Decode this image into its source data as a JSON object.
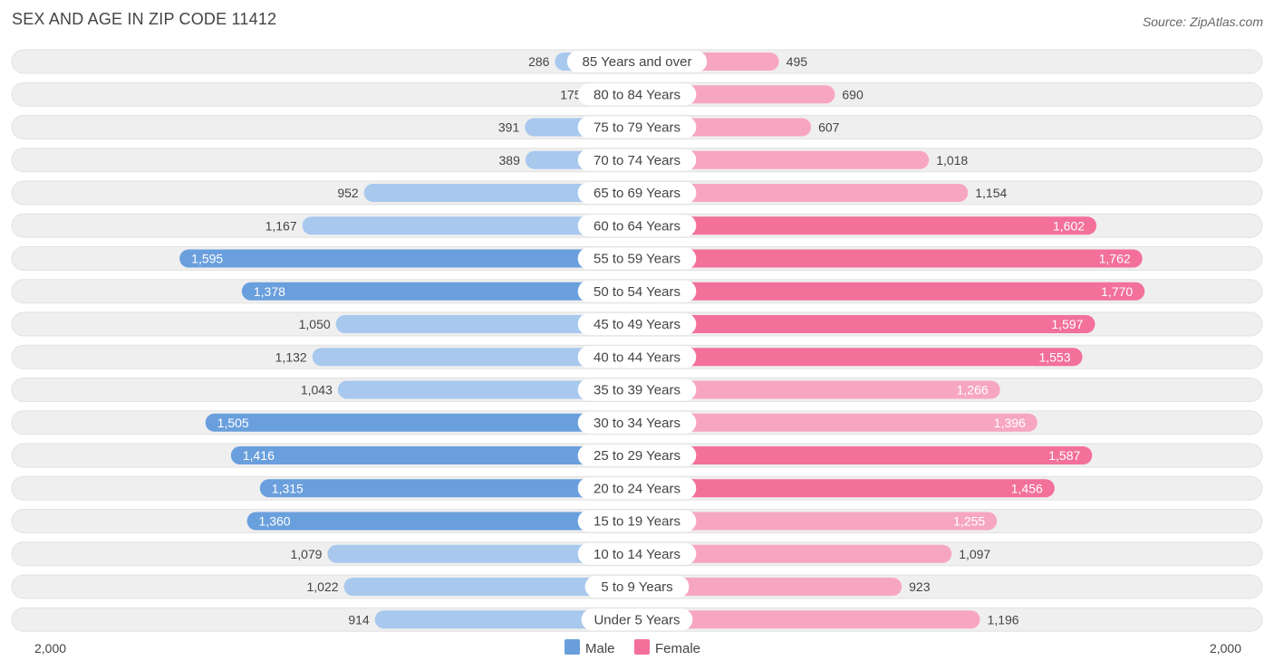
{
  "title": "SEX AND AGE IN ZIP CODE 11412",
  "source": "Source: ZipAtlas.com",
  "colors": {
    "male": "#6a9fdd",
    "male_light": "#a8c8ee",
    "female": "#f2709a",
    "female_light": "#f7a6c1",
    "row_bg": "#efefef"
  },
  "legend": {
    "male": "Male",
    "female": "Female"
  },
  "axis": {
    "left_label": "2,000",
    "right_label": "2,000"
  },
  "chart_data": {
    "type": "bar",
    "orientation": "horizontal-diverging",
    "xlim": [
      0,
      2000
    ],
    "categories": [
      "85 Years and over",
      "80 to 84 Years",
      "75 to 79 Years",
      "70 to 74 Years",
      "65 to 69 Years",
      "60 to 64 Years",
      "55 to 59 Years",
      "50 to 54 Years",
      "45 to 49 Years",
      "40 to 44 Years",
      "35 to 39 Years",
      "30 to 34 Years",
      "25 to 29 Years",
      "20 to 24 Years",
      "15 to 19 Years",
      "10 to 14 Years",
      "5 to 9 Years",
      "Under 5 Years"
    ],
    "series": [
      {
        "name": "Male",
        "values": [
          286,
          175,
          391,
          389,
          952,
          1167,
          1595,
          1378,
          1050,
          1132,
          1043,
          1505,
          1416,
          1315,
          1360,
          1079,
          1022,
          914
        ],
        "labels": [
          "286",
          "175",
          "391",
          "389",
          "952",
          "1,167",
          "1,595",
          "1,378",
          "1,050",
          "1,132",
          "1,043",
          "1,505",
          "1,416",
          "1,315",
          "1,360",
          "1,079",
          "1,022",
          "914"
        ]
      },
      {
        "name": "Female",
        "values": [
          495,
          690,
          607,
          1018,
          1154,
          1602,
          1762,
          1770,
          1597,
          1553,
          1266,
          1396,
          1587,
          1456,
          1255,
          1097,
          923,
          1196
        ],
        "labels": [
          "495",
          "690",
          "607",
          "1,018",
          "1,154",
          "1,602",
          "1,762",
          "1,770",
          "1,597",
          "1,553",
          "1,266",
          "1,396",
          "1,587",
          "1,456",
          "1,255",
          "1,097",
          "923",
          "1,196"
        ]
      }
    ]
  }
}
